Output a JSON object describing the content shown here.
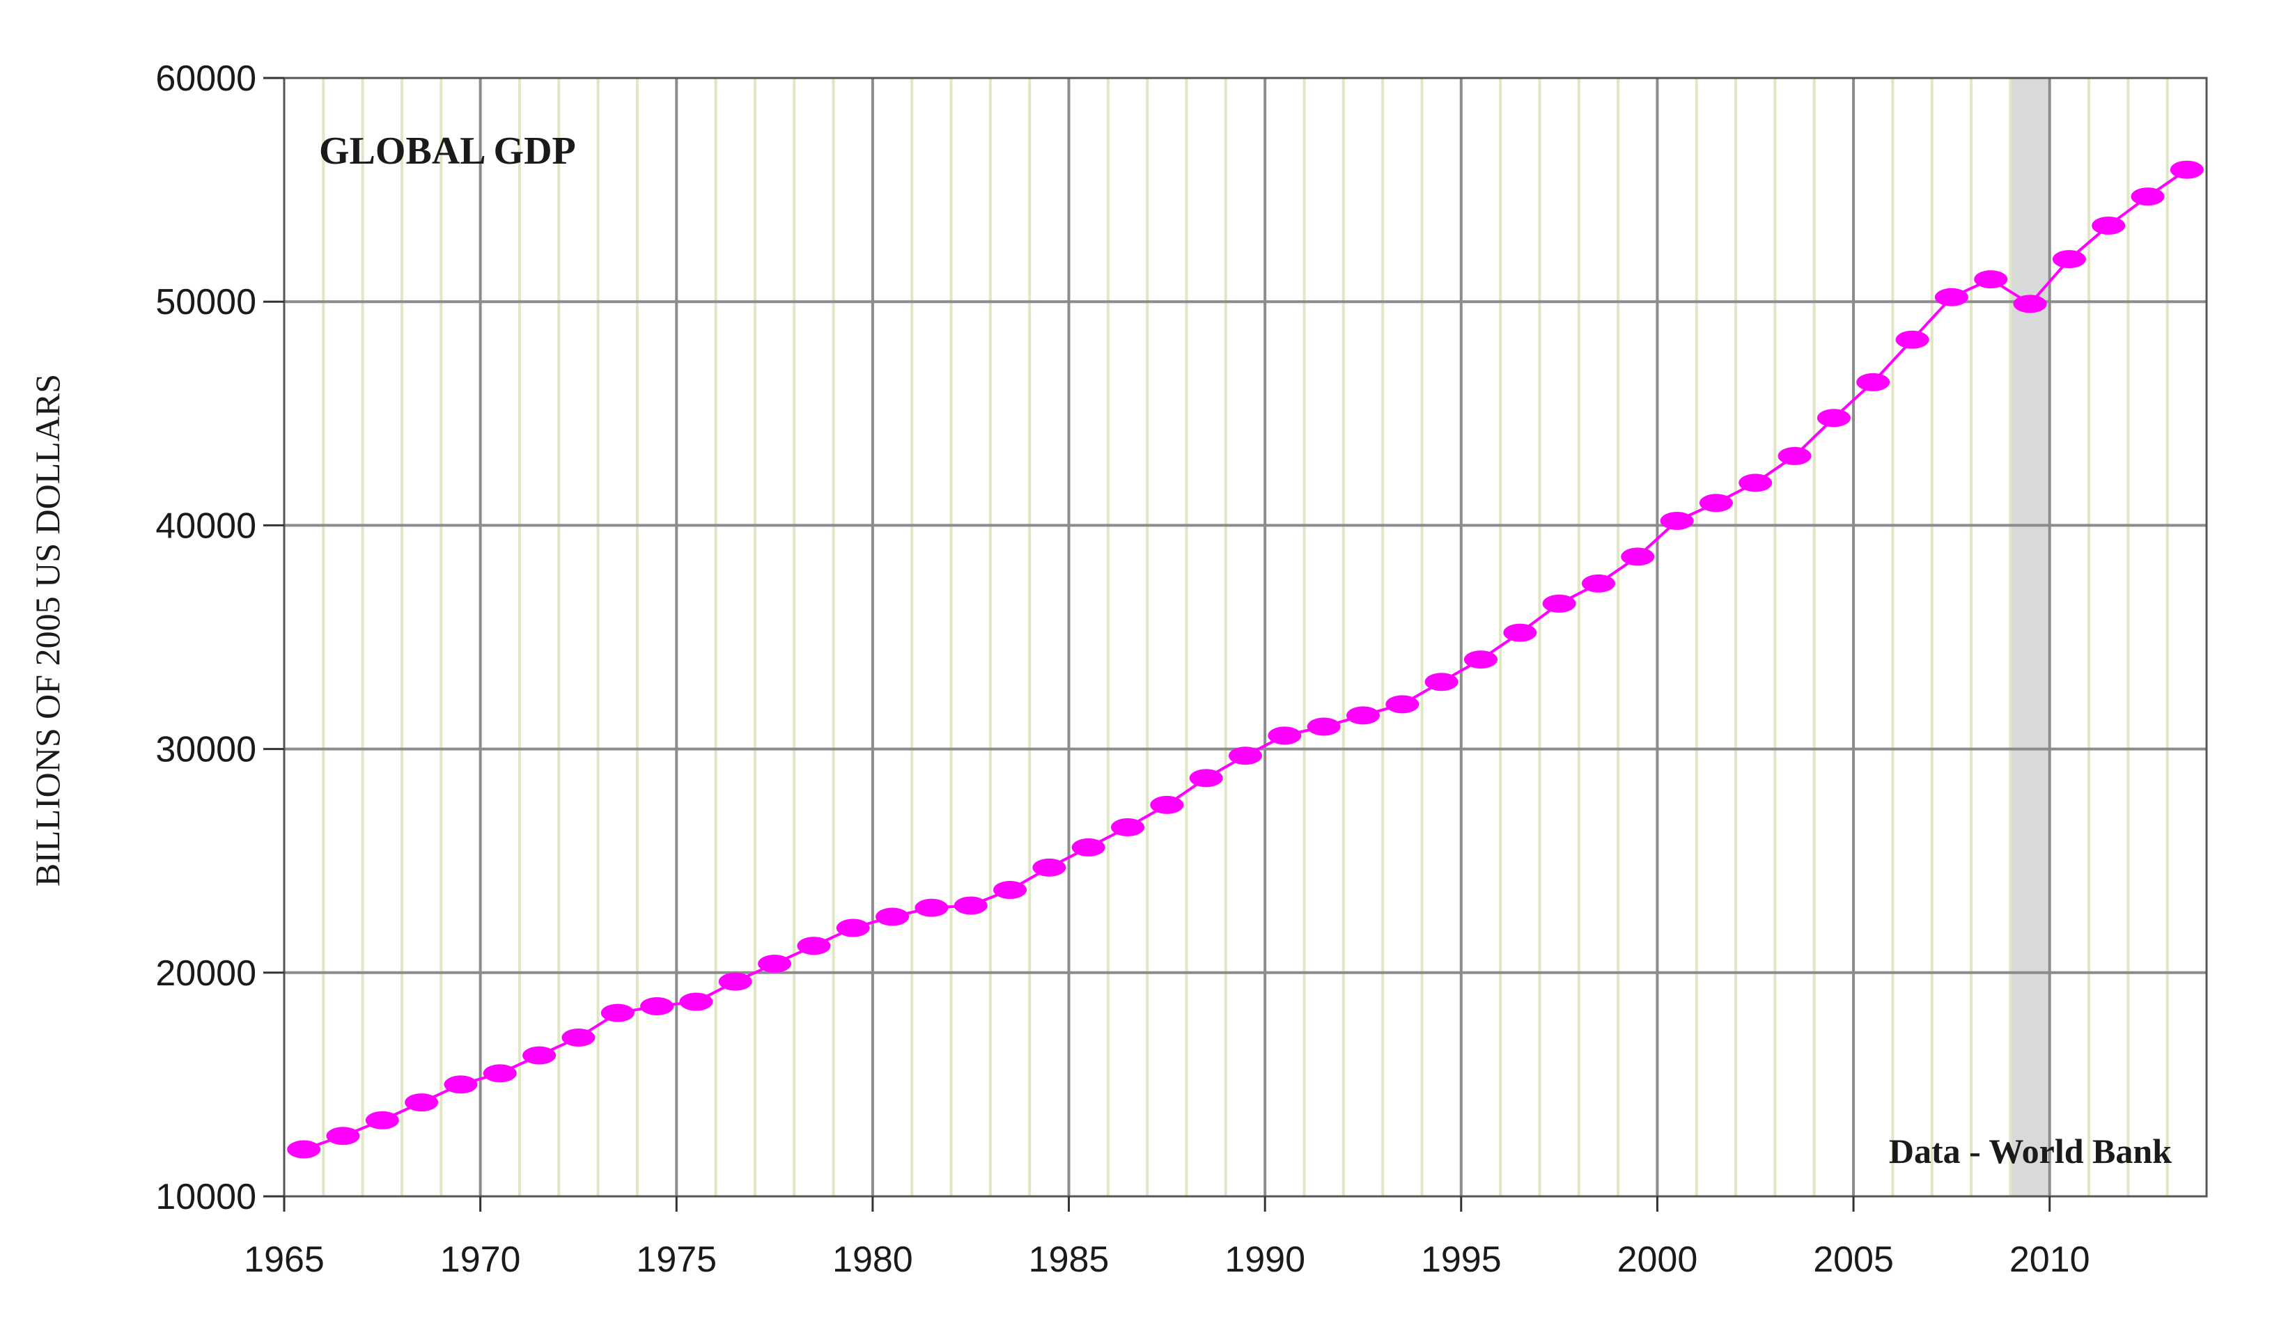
{
  "chart_data": {
    "type": "line",
    "title": "GLOBAL GDP",
    "xlabel": "",
    "ylabel": "BILLIONS OF 2005 US DOLLARS",
    "annotation": "Data - World Bank",
    "xlim": [
      1965,
      2014
    ],
    "ylim": [
      10000,
      60000
    ],
    "x_ticks": [
      1965,
      1970,
      1975,
      1980,
      1985,
      1990,
      1995,
      2000,
      2005,
      2010
    ],
    "y_ticks": [
      10000,
      20000,
      30000,
      40000,
      50000,
      60000
    ],
    "x_tick_labels": [
      "1965",
      "1970",
      "1975",
      "1980",
      "1985",
      "1990",
      "1995",
      "2000",
      "2005",
      "2010"
    ],
    "y_tick_labels": [
      "10000",
      "20000",
      "30000",
      "40000",
      "50000",
      "60000"
    ],
    "grid": true,
    "shaded_band": {
      "x_from": 2009,
      "x_to": 2010,
      "color": "#d9d9d9"
    },
    "colors": {
      "series": "#ff00ff",
      "major_grid": "#8c8c8c",
      "minor_grid": "#e3e6c5",
      "band": "#d9d9d9"
    },
    "series": [
      {
        "x": [
          1965.5,
          1966.5,
          1967.5,
          1968.5,
          1969.5,
          1970.5,
          1971.5,
          1972.5,
          1973.5,
          1974.5,
          1975.5,
          1976.5,
          1977.5,
          1978.5,
          1979.5,
          1980.5,
          1981.5,
          1982.5,
          1983.5,
          1984.5,
          1985.5,
          1986.5,
          1987.5,
          1988.5,
          1989.5,
          1990.5,
          1991.5,
          1992.5,
          1993.5,
          1994.5,
          1995.5,
          1996.5,
          1997.5,
          1998.5,
          1999.5,
          2000.5,
          2001.5,
          2002.5,
          2003.5,
          2004.5,
          2005.5,
          2006.5,
          2007.5,
          2008.5,
          2009.5,
          2010.5,
          2011.5,
          2012.5,
          2013.5
        ],
        "y": [
          12100,
          12700,
          13400,
          14200,
          15000,
          15500,
          16300,
          17100,
          18200,
          18500,
          18700,
          19600,
          20400,
          21200,
          22000,
          22500,
          22900,
          23000,
          23700,
          24700,
          25600,
          26500,
          27500,
          28700,
          29700,
          30600,
          31000,
          31500,
          32000,
          33000,
          34000,
          35200,
          36500,
          37400,
          38600,
          40200,
          41000,
          41900,
          43100,
          44800,
          46400,
          48300,
          50200,
          51000,
          49900,
          51900,
          53400,
          54700,
          55900
        ]
      }
    ]
  }
}
